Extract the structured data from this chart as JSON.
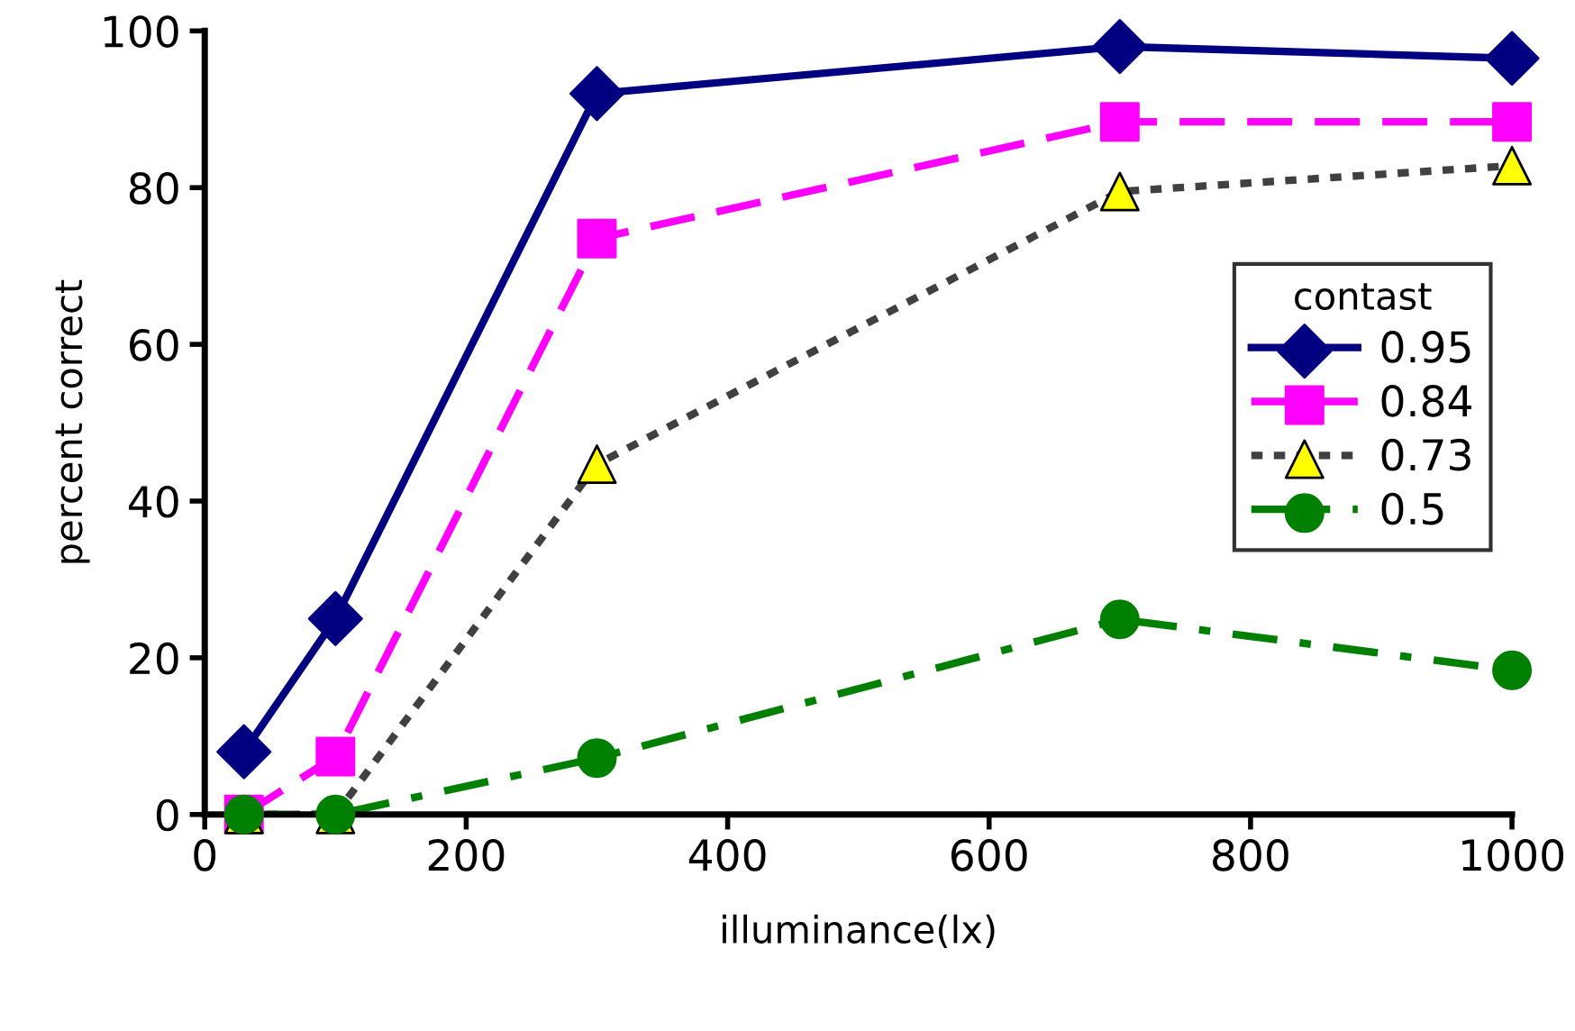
{
  "chart_data": {
    "type": "line",
    "xlabel": "illuminance(lx)",
    "ylabel": "percent correct",
    "legend_title": "contast",
    "legend": "right",
    "grid": false,
    "x": [
      30,
      100,
      300,
      700,
      1000
    ],
    "xlim": [
      0,
      1000
    ],
    "xticks": [
      0,
      200,
      400,
      600,
      800,
      1000
    ],
    "ylim": [
      0,
      100
    ],
    "yticks": [
      0,
      20,
      40,
      60,
      80,
      100
    ],
    "series": [
      {
        "name": "0.95",
        "color": "#000080",
        "marker": "diamond",
        "line_style": "solid",
        "values": [
          8,
          25,
          92,
          98,
          96.5
        ]
      },
      {
        "name": "0.84",
        "color": "#ff00ff",
        "marker": "square",
        "line_style": "dashed",
        "values": [
          0,
          7.4,
          73.5,
          88.4,
          88.4
        ]
      },
      {
        "name": "0.73",
        "color": "#404040",
        "colors": [
          "#ffff00",
          "#ffff00",
          "#ffff00",
          "#ffff00",
          "#ffff00"
        ],
        "marker": "triangle",
        "line_style": "dotted",
        "values": [
          0,
          0,
          44.7,
          79.5,
          82.8
        ]
      },
      {
        "name": "0.5",
        "color": "#008000",
        "marker": "circle",
        "line_style": "dashdot",
        "values": [
          0,
          0,
          7.2,
          24.9,
          18.4
        ]
      }
    ]
  }
}
